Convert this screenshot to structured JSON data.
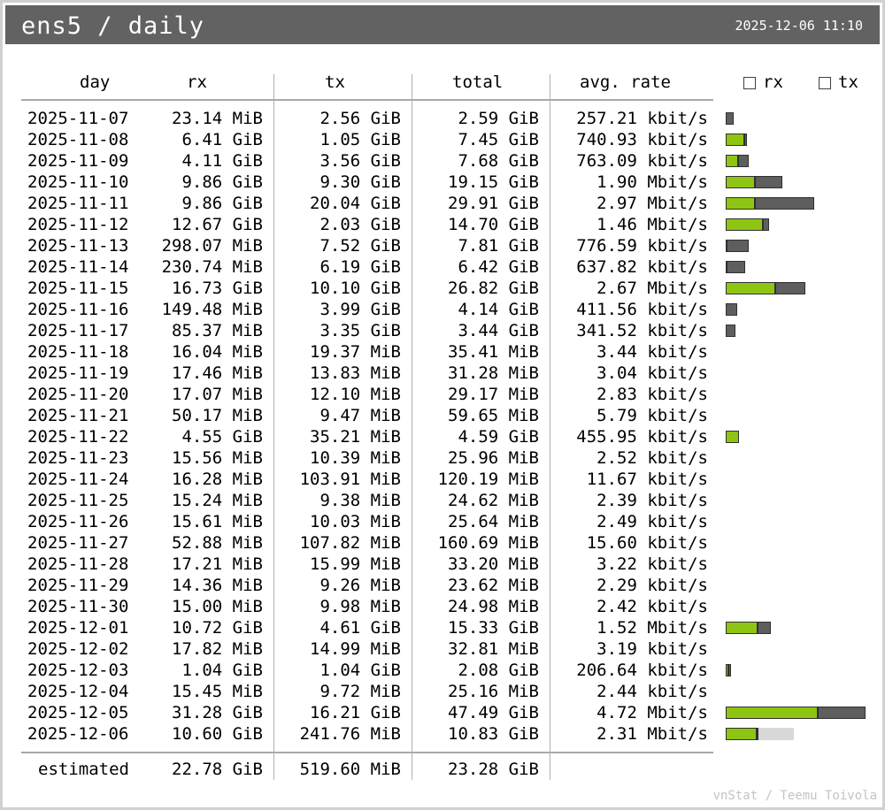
{
  "header": {
    "title": "ens5 / daily",
    "timestamp": "2025-12-06 11:10"
  },
  "columns": {
    "day": "day",
    "rx": "rx",
    "tx": "tx",
    "total": "total",
    "rate": "avg. rate"
  },
  "legend": {
    "rx_label": "rx",
    "tx_label": "tx",
    "rx_color": "#8ec512",
    "tx_color": "#5e5e5e",
    "estimate_color": "#d8d8d8"
  },
  "rows": [
    {
      "day": "2025-11-07",
      "rx": "23.14 MiB",
      "tx": "2.56 GiB",
      "total": "2.59 GiB",
      "rate": "257.21 kbit/s"
    },
    {
      "day": "2025-11-08",
      "rx": "6.41 GiB",
      "tx": "1.05 GiB",
      "total": "7.45 GiB",
      "rate": "740.93 kbit/s"
    },
    {
      "day": "2025-11-09",
      "rx": "4.11 GiB",
      "tx": "3.56 GiB",
      "total": "7.68 GiB",
      "rate": "763.09 kbit/s"
    },
    {
      "day": "2025-11-10",
      "rx": "9.86 GiB",
      "tx": "9.30 GiB",
      "total": "19.15 GiB",
      "rate": "1.90 Mbit/s"
    },
    {
      "day": "2025-11-11",
      "rx": "9.86 GiB",
      "tx": "20.04 GiB",
      "total": "29.91 GiB",
      "rate": "2.97 Mbit/s"
    },
    {
      "day": "2025-11-12",
      "rx": "12.67 GiB",
      "tx": "2.03 GiB",
      "total": "14.70 GiB",
      "rate": "1.46 Mbit/s"
    },
    {
      "day": "2025-11-13",
      "rx": "298.07 MiB",
      "tx": "7.52 GiB",
      "total": "7.81 GiB",
      "rate": "776.59 kbit/s"
    },
    {
      "day": "2025-11-14",
      "rx": "230.74 MiB",
      "tx": "6.19 GiB",
      "total": "6.42 GiB",
      "rate": "637.82 kbit/s"
    },
    {
      "day": "2025-11-15",
      "rx": "16.73 GiB",
      "tx": "10.10 GiB",
      "total": "26.82 GiB",
      "rate": "2.67 Mbit/s"
    },
    {
      "day": "2025-11-16",
      "rx": "149.48 MiB",
      "tx": "3.99 GiB",
      "total": "4.14 GiB",
      "rate": "411.56 kbit/s"
    },
    {
      "day": "2025-11-17",
      "rx": "85.37 MiB",
      "tx": "3.35 GiB",
      "total": "3.44 GiB",
      "rate": "341.52 kbit/s"
    },
    {
      "day": "2025-11-18",
      "rx": "16.04 MiB",
      "tx": "19.37 MiB",
      "total": "35.41 MiB",
      "rate": "3.44 kbit/s"
    },
    {
      "day": "2025-11-19",
      "rx": "17.46 MiB",
      "tx": "13.83 MiB",
      "total": "31.28 MiB",
      "rate": "3.04 kbit/s"
    },
    {
      "day": "2025-11-20",
      "rx": "17.07 MiB",
      "tx": "12.10 MiB",
      "total": "29.17 MiB",
      "rate": "2.83 kbit/s"
    },
    {
      "day": "2025-11-21",
      "rx": "50.17 MiB",
      "tx": "9.47 MiB",
      "total": "59.65 MiB",
      "rate": "5.79 kbit/s"
    },
    {
      "day": "2025-11-22",
      "rx": "4.55 GiB",
      "tx": "35.21 MiB",
      "total": "4.59 GiB",
      "rate": "455.95 kbit/s"
    },
    {
      "day": "2025-11-23",
      "rx": "15.56 MiB",
      "tx": "10.39 MiB",
      "total": "25.96 MiB",
      "rate": "2.52 kbit/s"
    },
    {
      "day": "2025-11-24",
      "rx": "16.28 MiB",
      "tx": "103.91 MiB",
      "total": "120.19 MiB",
      "rate": "11.67 kbit/s"
    },
    {
      "day": "2025-11-25",
      "rx": "15.24 MiB",
      "tx": "9.38 MiB",
      "total": "24.62 MiB",
      "rate": "2.39 kbit/s"
    },
    {
      "day": "2025-11-26",
      "rx": "15.61 MiB",
      "tx": "10.03 MiB",
      "total": "25.64 MiB",
      "rate": "2.49 kbit/s"
    },
    {
      "day": "2025-11-27",
      "rx": "52.88 MiB",
      "tx": "107.82 MiB",
      "total": "160.69 MiB",
      "rate": "15.60 kbit/s"
    },
    {
      "day": "2025-11-28",
      "rx": "17.21 MiB",
      "tx": "15.99 MiB",
      "total": "33.20 MiB",
      "rate": "3.22 kbit/s"
    },
    {
      "day": "2025-11-29",
      "rx": "14.36 MiB",
      "tx": "9.26 MiB",
      "total": "23.62 MiB",
      "rate": "2.29 kbit/s"
    },
    {
      "day": "2025-11-30",
      "rx": "15.00 MiB",
      "tx": "9.98 MiB",
      "total": "24.98 MiB",
      "rate": "2.42 kbit/s"
    },
    {
      "day": "2025-12-01",
      "rx": "10.72 GiB",
      "tx": "4.61 GiB",
      "total": "15.33 GiB",
      "rate": "1.52 Mbit/s"
    },
    {
      "day": "2025-12-02",
      "rx": "17.82 MiB",
      "tx": "14.99 MiB",
      "total": "32.81 MiB",
      "rate": "3.19 kbit/s"
    },
    {
      "day": "2025-12-03",
      "rx": "1.04 GiB",
      "tx": "1.04 GiB",
      "total": "2.08 GiB",
      "rate": "206.64 kbit/s"
    },
    {
      "day": "2025-12-04",
      "rx": "15.45 MiB",
      "tx": "9.72 MiB",
      "total": "25.16 MiB",
      "rate": "2.44 kbit/s"
    },
    {
      "day": "2025-12-05",
      "rx": "31.28 GiB",
      "tx": "16.21 GiB",
      "total": "47.49 GiB",
      "rate": "4.72 Mbit/s"
    },
    {
      "day": "2025-12-06",
      "rx": "10.60 GiB",
      "tx": "241.76 MiB",
      "total": "10.83 GiB",
      "rate": "2.31 Mbit/s"
    }
  ],
  "estimated": {
    "label": "estimated",
    "rx": "22.78 GiB",
    "tx": "519.60 MiB",
    "total": "23.28 GiB"
  },
  "footer": "vnStat / Teemu Toivola"
}
